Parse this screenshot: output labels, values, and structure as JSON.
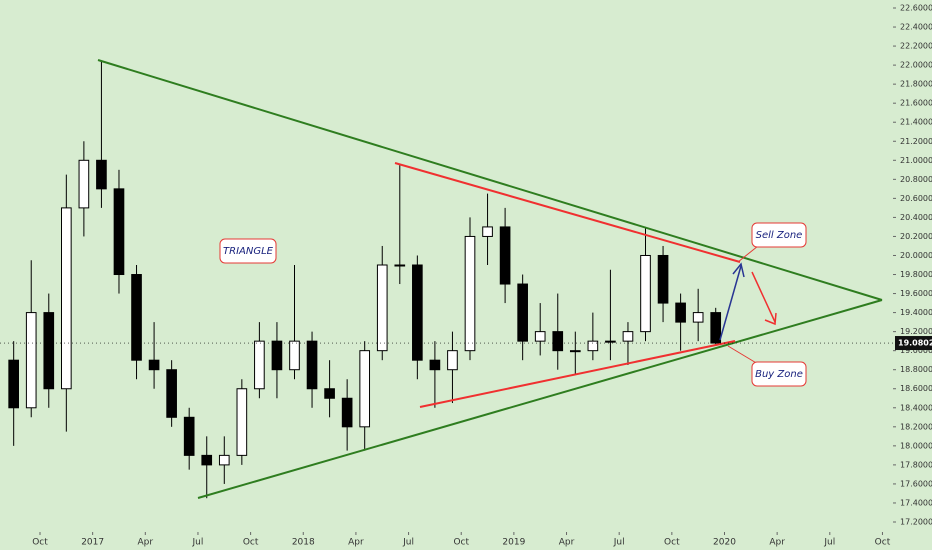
{
  "chart_data": {
    "type": "candlestick",
    "x": [
      "2016-08",
      "2016-09",
      "2016-10",
      "2016-11",
      "2016-12",
      "2017-01",
      "2017-02",
      "2017-03",
      "2017-04",
      "2017-05",
      "2017-06",
      "2017-07",
      "2017-08",
      "2017-09",
      "2017-10",
      "2017-11",
      "2017-12",
      "2018-01",
      "2018-02",
      "2018-03",
      "2018-04",
      "2018-05",
      "2018-06",
      "2018-07",
      "2018-08",
      "2018-09",
      "2018-10",
      "2018-11",
      "2018-12",
      "2019-01",
      "2019-02",
      "2019-03",
      "2019-04",
      "2019-05",
      "2019-06",
      "2019-07",
      "2019-08",
      "2019-09",
      "2019-10",
      "2019-11",
      "2019-12"
    ],
    "open": [
      18.9,
      18.4,
      19.4,
      18.6,
      20.5,
      21.0,
      20.7,
      19.8,
      18.9,
      18.8,
      18.3,
      17.9,
      17.8,
      17.9,
      18.6,
      19.1,
      18.8,
      19.1,
      18.6,
      18.5,
      18.2,
      19.0,
      19.9,
      19.9,
      18.9,
      18.8,
      19.0,
      20.2,
      20.3,
      19.7,
      19.1,
      19.2,
      19.0,
      19.0,
      19.1,
      19.1,
      19.2,
      20.0,
      19.5,
      19.3,
      19.4
    ],
    "high": [
      19.1,
      19.95,
      19.6,
      20.85,
      21.2,
      22.05,
      20.9,
      19.9,
      19.3,
      18.9,
      18.4,
      18.1,
      18.1,
      18.7,
      19.3,
      19.3,
      19.9,
      19.2,
      18.9,
      18.7,
      19.1,
      20.1,
      20.95,
      20.0,
      19.1,
      19.2,
      20.4,
      20.65,
      20.5,
      19.8,
      19.5,
      19.6,
      19.2,
      19.4,
      19.85,
      19.3,
      20.3,
      20.1,
      19.6,
      19.65,
      19.45
    ],
    "low": [
      18.0,
      18.3,
      18.4,
      18.15,
      20.2,
      20.5,
      19.6,
      18.7,
      18.6,
      18.2,
      17.75,
      17.45,
      17.6,
      17.8,
      18.5,
      18.5,
      18.7,
      18.4,
      18.3,
      17.95,
      17.95,
      18.9,
      19.7,
      18.7,
      18.4,
      18.45,
      18.9,
      19.9,
      19.5,
      18.9,
      18.95,
      18.8,
      18.75,
      18.9,
      18.9,
      18.85,
      19.1,
      19.3,
      19.0,
      19.1,
      19.05
    ],
    "close": [
      18.4,
      19.4,
      18.6,
      20.5,
      21.0,
      20.7,
      19.8,
      18.9,
      18.8,
      18.3,
      17.9,
      17.8,
      17.9,
      18.6,
      19.1,
      18.8,
      19.1,
      18.6,
      18.5,
      18.2,
      19.0,
      19.9,
      19.9,
      18.9,
      18.8,
      19.0,
      20.2,
      20.3,
      19.7,
      19.1,
      19.2,
      19.0,
      19.0,
      19.1,
      19.1,
      19.2,
      20.0,
      19.5,
      19.3,
      19.4,
      19.08
    ],
    "up_color": "#ffffff",
    "down_color": "#000000",
    "xlim": [
      "2016-08",
      "2020-11"
    ],
    "xticks": [
      {
        "value": "2016-10",
        "label": "Oct"
      },
      {
        "value": "2017-01",
        "label": "2017"
      },
      {
        "value": "2017-04",
        "label": "Apr"
      },
      {
        "value": "2017-07",
        "label": "Jul"
      },
      {
        "value": "2017-10",
        "label": "Oct"
      },
      {
        "value": "2018-01",
        "label": "2018"
      },
      {
        "value": "2018-04",
        "label": "Apr"
      },
      {
        "value": "2018-07",
        "label": "Jul"
      },
      {
        "value": "2018-10",
        "label": "Oct"
      },
      {
        "value": "2019-01",
        "label": "2019"
      },
      {
        "value": "2019-04",
        "label": "Apr"
      },
      {
        "value": "2019-07",
        "label": "Jul"
      },
      {
        "value": "2019-10",
        "label": "Oct"
      },
      {
        "value": "2020-01",
        "label": "2020"
      },
      {
        "value": "2020-04",
        "label": "Apr"
      },
      {
        "value": "2020-07",
        "label": "Jul"
      },
      {
        "value": "2020-10",
        "label": "Oct"
      }
    ],
    "ylim": [
      17.116,
      22.684
    ],
    "yticks": [
      {
        "value": 17.2,
        "label": "17.20000"
      },
      {
        "value": 17.4,
        "label": "17.40000"
      },
      {
        "value": 17.6,
        "label": "17.60000"
      },
      {
        "value": 17.8,
        "label": "17.80000"
      },
      {
        "value": 18.0,
        "label": "18.00000"
      },
      {
        "value": 18.2,
        "label": "18.20000"
      },
      {
        "value": 18.4,
        "label": "18.40000"
      },
      {
        "value": 18.6,
        "label": "18.60000"
      },
      {
        "value": 18.8,
        "label": "18.80000"
      },
      {
        "value": 19.0,
        "label": "19.00000"
      },
      {
        "value": 19.2,
        "label": "19.20000"
      },
      {
        "value": 19.4,
        "label": "19.40000"
      },
      {
        "value": 19.6,
        "label": "19.60000"
      },
      {
        "value": 19.8,
        "label": "19.80000"
      },
      {
        "value": 20.0,
        "label": "20.00000"
      },
      {
        "value": 20.2,
        "label": "20.20000"
      },
      {
        "value": 20.4,
        "label": "20.40000"
      },
      {
        "value": 20.6,
        "label": "20.60000"
      },
      {
        "value": 20.8,
        "label": "20.80000"
      },
      {
        "value": 21.0,
        "label": "21.00000"
      },
      {
        "value": 21.2,
        "label": "21.20000"
      },
      {
        "value": 21.4,
        "label": "21.40000"
      },
      {
        "value": 21.6,
        "label": "21.60000"
      },
      {
        "value": 21.8,
        "label": "21.80000"
      },
      {
        "value": 22.0,
        "label": "22.00000"
      },
      {
        "value": 22.2,
        "label": "22.20000"
      },
      {
        "value": 22.4,
        "label": "22.40000"
      },
      {
        "value": 22.6,
        "label": "22.60000"
      }
    ],
    "last_price": {
      "value": 19.0802,
      "label": "19.08020"
    },
    "annotations": {
      "pattern": "TRIANGLE",
      "sell": "Sell Zone",
      "buy": "Buy Zone"
    }
  }
}
